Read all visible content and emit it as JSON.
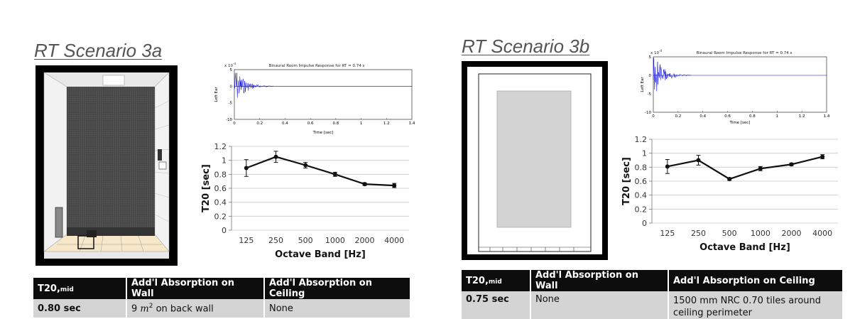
{
  "scenarios": [
    {
      "title": "RT Scenario 3a",
      "impulse": {
        "title": "Binaural Room Impulse Response for RT = 0.74 s",
        "ylabel": "Left Ear",
        "xlabel": "Time [sec]",
        "scale": "x 10",
        "scale_exp": "-4",
        "xticks": [
          "0",
          "0.2",
          "0.4",
          "0.6",
          "0.8",
          "1",
          "1.2",
          "1.4"
        ],
        "yticks": [
          "5",
          "0",
          "-5",
          "-10"
        ]
      },
      "table": {
        "headers": [
          "T20,mid",
          "Add'l Absorption on Wall",
          "Add'l Absorption on Ceiling"
        ],
        "row": [
          "0.80 sec",
          "9 m² on back wall",
          "None"
        ]
      }
    },
    {
      "title": "RT Scenario 3b",
      "impulse": {
        "title": "Binaural Room Impulse Response for RT = 0.74 s",
        "ylabel": "Left Ear",
        "xlabel": "Time [sec]",
        "scale": "x 10",
        "scale_exp": "-4",
        "xticks": [
          "0",
          "0.2",
          "0.4",
          "0.6",
          "0.8",
          "1",
          "1.2",
          "1.4"
        ],
        "yticks": [
          "5",
          "0",
          "-5",
          "-10"
        ]
      },
      "table": {
        "headers": [
          "T20,mid",
          "Add'l Absorption on Wall",
          "Add'l Absorption on Ceiling"
        ],
        "row": [
          "0.75 sec",
          "None",
          "1500 mm NRC 0.70 tiles around ceiling perimeter"
        ]
      }
    }
  ],
  "chart_data": [
    {
      "type": "line",
      "ylabel": "T20 [sec]",
      "xlabel": "Octave Band [Hz]",
      "categories": [
        "125",
        "250",
        "500",
        "1000",
        "2000",
        "4000"
      ],
      "values": [
        0.89,
        1.05,
        0.93,
        0.8,
        0.66,
        0.64
      ],
      "errors": [
        0.12,
        0.08,
        0.04,
        0.03,
        0.02,
        0.03
      ],
      "ylim": [
        0,
        1.2
      ],
      "yticks": [
        "0",
        "0.2",
        "0.4",
        "0.6",
        "0.8",
        "1",
        "1.2"
      ],
      "grid": true
    },
    {
      "type": "line",
      "ylabel": "T20 [sec]",
      "xlabel": "Octave Band [Hz]",
      "categories": [
        "125",
        "250",
        "500",
        "1000",
        "2000",
        "4000"
      ],
      "values": [
        0.81,
        0.9,
        0.63,
        0.78,
        0.84,
        0.95
      ],
      "errors": [
        0.1,
        0.07,
        0.02,
        0.03,
        0.02,
        0.03
      ],
      "ylim": [
        0,
        1.2
      ],
      "yticks": [
        "0",
        "0.2",
        "0.4",
        "0.6",
        "0.8",
        "1",
        "1.2"
      ],
      "grid": true
    }
  ]
}
